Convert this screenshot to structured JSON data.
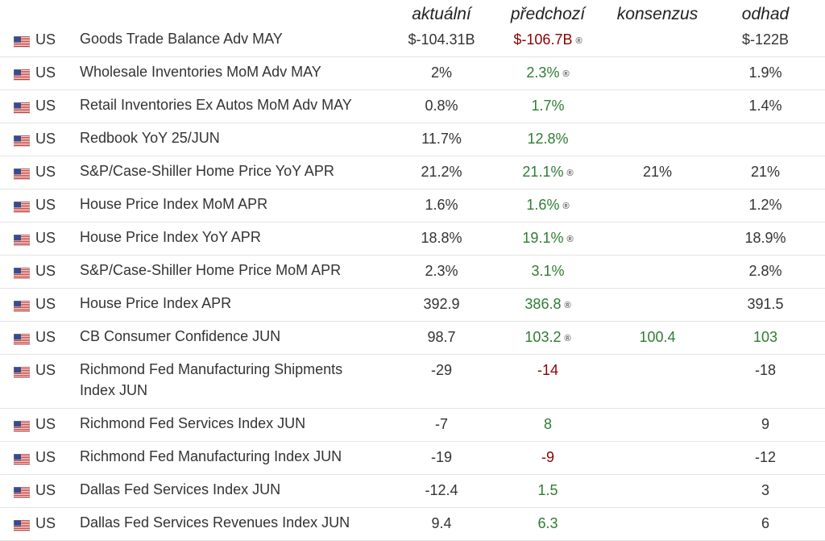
{
  "headers": {
    "actual": "aktuální",
    "previous": "předchozí",
    "consensus": "konsenzus",
    "forecast": "odhad"
  },
  "rows": [
    {
      "country": "US",
      "event": "Goods Trade Balance Adv MAY",
      "actual": "$-104.31B",
      "previous": "$-106.7B",
      "previous_color": "down",
      "revised": "®",
      "consensus": "",
      "forecast": "$-122B",
      "forecast_color": "neutral"
    },
    {
      "country": "US",
      "event": "Wholesale Inventories MoM Adv MAY",
      "actual": "2%",
      "previous": "2.3%",
      "previous_color": "up",
      "revised": "®",
      "consensus": "",
      "forecast": "1.9%",
      "forecast_color": "neutral"
    },
    {
      "country": "US",
      "event": "Retail Inventories Ex Autos MoM Adv MAY",
      "actual": "0.8%",
      "previous": "1.7%",
      "previous_color": "up",
      "revised": "",
      "consensus": "",
      "forecast": "1.4%",
      "forecast_color": "neutral"
    },
    {
      "country": "US",
      "event": "Redbook YoY 25/JUN",
      "actual": "11.7%",
      "previous": "12.8%",
      "previous_color": "up",
      "revised": "",
      "consensus": "",
      "forecast": "",
      "forecast_color": "neutral"
    },
    {
      "country": "US",
      "event": "S&P/Case-Shiller Home Price YoY APR",
      "actual": "21.2%",
      "previous": "21.1%",
      "previous_color": "up",
      "revised": "®",
      "consensus": "21%",
      "forecast": "21%",
      "forecast_color": "neutral"
    },
    {
      "country": "US",
      "event": "House Price Index MoM APR",
      "actual": "1.6%",
      "previous": "1.6%",
      "previous_color": "up",
      "revised": "®",
      "consensus": "",
      "forecast": "1.2%",
      "forecast_color": "neutral"
    },
    {
      "country": "US",
      "event": "House Price Index YoY APR",
      "actual": "18.8%",
      "previous": "19.1%",
      "previous_color": "up",
      "revised": "®",
      "consensus": "",
      "forecast": "18.9%",
      "forecast_color": "neutral"
    },
    {
      "country": "US",
      "event": "S&P/Case-Shiller Home Price MoM APR",
      "actual": "2.3%",
      "previous": "3.1%",
      "previous_color": "up",
      "revised": "",
      "consensus": "",
      "forecast": "2.8%",
      "forecast_color": "neutral"
    },
    {
      "country": "US",
      "event": "House Price Index APR",
      "actual": "392.9",
      "previous": "386.8",
      "previous_color": "up",
      "revised": "®",
      "consensus": "",
      "forecast": "391.5",
      "forecast_color": "neutral"
    },
    {
      "country": "US",
      "event": "CB Consumer Confidence JUN",
      "actual": "98.7",
      "previous": "103.2",
      "previous_color": "up",
      "revised": "®",
      "consensus": "100.4",
      "consensus_color": "up",
      "forecast": "103",
      "forecast_color": "up"
    },
    {
      "country": "US",
      "event": "Richmond Fed Manufacturing Shipments Index JUN",
      "actual": "-29",
      "previous": "-14",
      "previous_color": "down",
      "revised": "",
      "consensus": "",
      "forecast": "-18",
      "forecast_color": "neutral",
      "tall": true
    },
    {
      "country": "US",
      "event": "Richmond Fed Services Index JUN",
      "actual": "-7",
      "previous": "8",
      "previous_color": "up",
      "revised": "",
      "consensus": "",
      "forecast": "9",
      "forecast_color": "neutral"
    },
    {
      "country": "US",
      "event": "Richmond Fed Manufacturing Index JUN",
      "actual": "-19",
      "previous": "-9",
      "previous_color": "down",
      "revised": "",
      "consensus": "",
      "forecast": "-12",
      "forecast_color": "neutral"
    },
    {
      "country": "US",
      "event": "Dallas Fed Services Index JUN",
      "actual": "-12.4",
      "previous": "1.5",
      "previous_color": "up",
      "revised": "",
      "consensus": "",
      "forecast": "3",
      "forecast_color": "neutral"
    },
    {
      "country": "US",
      "event": "Dallas Fed Services Revenues Index JUN",
      "actual": "9.4",
      "previous": "6.3",
      "previous_color": "up",
      "revised": "",
      "consensus": "",
      "forecast": "6",
      "forecast_color": "neutral"
    }
  ],
  "flag_icon": "us-flag-icon"
}
